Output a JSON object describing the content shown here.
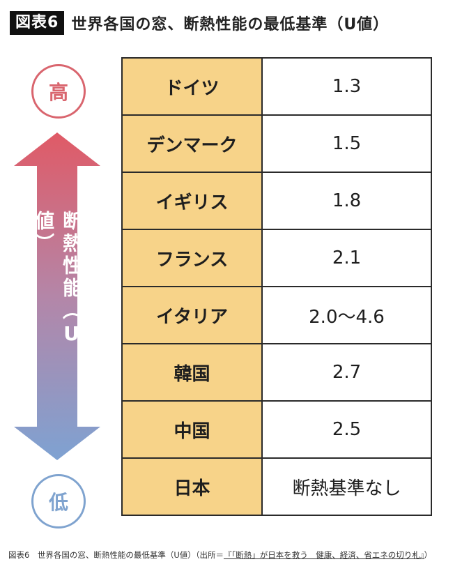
{
  "header": {
    "figure_label": "図表6",
    "title": "世界各国の窓、断熱性能の最低基準（U値）"
  },
  "scale": {
    "high_label": "高",
    "low_label": "低",
    "axis_label": "断熱性能（U値）",
    "colors": {
      "high": "#d9656e",
      "low": "#7fa3cf"
    }
  },
  "table": {
    "rows": [
      {
        "country": "ドイツ",
        "value": "1.3"
      },
      {
        "country": "デンマーク",
        "value": "1.5"
      },
      {
        "country": "イギリス",
        "value": "1.8"
      },
      {
        "country": "フランス",
        "value": "2.1"
      },
      {
        "country": "イタリア",
        "value": "2.0〜4.6"
      },
      {
        "country": "韓国",
        "value": "2.7"
      },
      {
        "country": "中国",
        "value": "2.5"
      },
      {
        "country": "日本",
        "value": "断熱基準なし"
      }
    ],
    "colors": {
      "country_bg": "#f7d389",
      "value_bg": "#ffffff"
    }
  },
  "caption": {
    "prefix": "図表6　世界各国の窓、断熱性能の最低基準（U値）（出所＝",
    "source": "『「断熱」が日本を救う　健康、経済、省エネの切り札』",
    "suffix": "）"
  }
}
